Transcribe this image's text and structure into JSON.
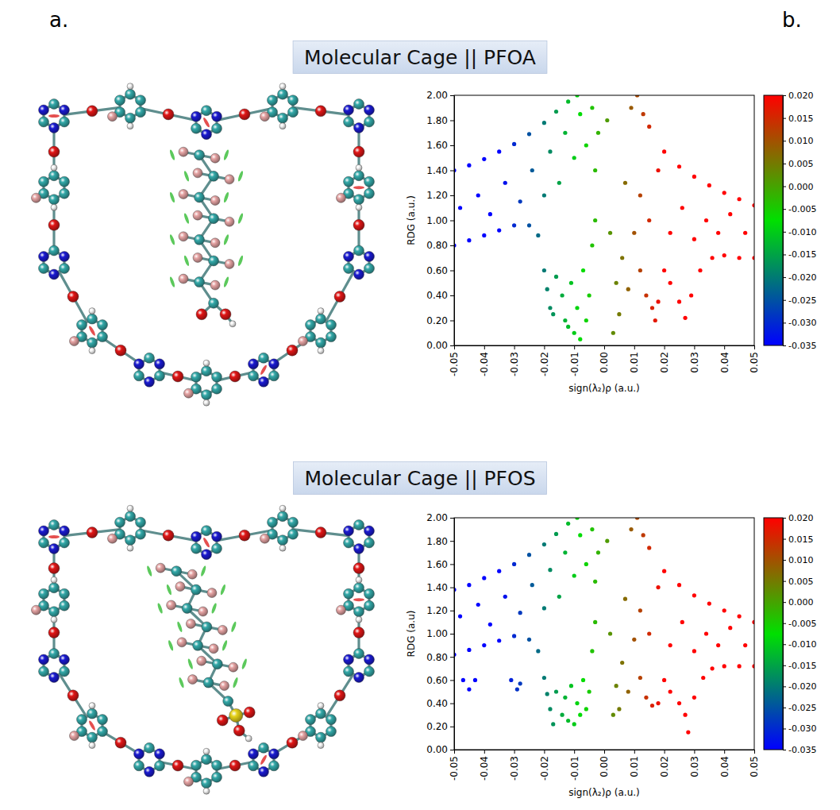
{
  "panel_labels": [
    "a.",
    "b."
  ],
  "chart_data": [
    {
      "type": "scatter",
      "title": "Molecular Cage || PFOA",
      "xlabel": "sign(λ₂)ρ (a.u.)",
      "ylabel": "RDG (a.u.)",
      "x": [
        -0.05,
        -0.045,
        -0.04,
        -0.035,
        -0.03,
        -0.025,
        -0.02,
        -0.016,
        -0.012,
        -0.009,
        -0.05,
        -0.045,
        -0.04,
        -0.035,
        -0.03,
        -0.025,
        -0.022,
        -0.048,
        -0.042,
        -0.038,
        -0.033,
        -0.028,
        -0.024,
        -0.02,
        -0.018,
        -0.015,
        -0.013,
        -0.01,
        -0.008,
        -0.006,
        -0.004,
        -0.003,
        -0.02,
        -0.019,
        -0.018,
        -0.017,
        -0.016,
        -0.014,
        -0.013,
        -0.012,
        -0.011,
        -0.01,
        -0.009,
        -0.008,
        -0.007,
        -0.006,
        -0.005,
        -0.004,
        -0.003,
        -0.002,
        0.001,
        0.002,
        0.003,
        0.004,
        0.005,
        0.006,
        0.007,
        0.008,
        0.009,
        0.01,
        0.012,
        0.014,
        0.016,
        0.017,
        0.018,
        0.02,
        0.022,
        0.025,
        0.027,
        0.029,
        0.032,
        0.036,
        0.04,
        0.045,
        0.05,
        0.011,
        0.013,
        0.015,
        0.02,
        0.025,
        0.03,
        0.035,
        0.04,
        0.045,
        0.05,
        0.012,
        0.015,
        0.018,
        0.022,
        0.026,
        0.03,
        0.034,
        0.038,
        0.042,
        0.047
      ],
      "values": [
        1.4,
        1.44,
        1.49,
        1.55,
        1.61,
        1.69,
        1.78,
        1.87,
        1.95,
        2.0,
        0.8,
        0.84,
        0.88,
        0.92,
        0.96,
        0.96,
        0.88,
        1.1,
        1.2,
        1.05,
        1.3,
        1.15,
        1.4,
        1.2,
        1.55,
        1.3,
        1.7,
        1.5,
        1.85,
        1.6,
        1.9,
        1.4,
        0.6,
        0.45,
        0.3,
        0.25,
        0.55,
        0.4,
        0.2,
        0.15,
        0.5,
        0.1,
        0.3,
        0.05,
        0.6,
        0.2,
        0.4,
        0.8,
        1.0,
        1.7,
        1.8,
        0.9,
        0.1,
        0.5,
        0.25,
        0.7,
        1.3,
        0.45,
        1.9,
        0.9,
        0.6,
        0.4,
        0.3,
        0.2,
        0.35,
        0.6,
        0.5,
        0.35,
        0.22,
        0.4,
        0.6,
        0.7,
        0.72,
        0.7,
        0.7,
        2.0,
        1.85,
        1.75,
        1.55,
        1.43,
        1.35,
        1.28,
        1.22,
        1.17,
        1.12,
        1.2,
        1.0,
        1.4,
        0.9,
        1.1,
        0.85,
        1.0,
        0.9,
        1.05,
        0.9
      ],
      "xlim": [
        -0.05,
        0.05
      ],
      "ylim": [
        0,
        2
      ],
      "xticks": [
        -0.05,
        -0.04,
        -0.03,
        -0.02,
        -0.01,
        {
          "value": 0,
          "label": "0.00"
        },
        0.01,
        0.02,
        0.03,
        0.04,
        0.05
      ],
      "yticks": [
        {
          "value": 0,
          "label": "0.00"
        },
        {
          "value": 0.2,
          "label": "0.20"
        },
        {
          "value": 0.4,
          "label": "0.40"
        },
        {
          "value": 0.6,
          "label": "0.60"
        },
        {
          "value": 0.8,
          "label": "0.80"
        },
        {
          "value": 1,
          "label": "1.00"
        },
        {
          "value": 1.2,
          "label": "1.20"
        },
        {
          "value": 1.4,
          "label": "1.40"
        },
        {
          "value": 1.6,
          "label": "1.60"
        },
        {
          "value": 1.8,
          "label": "1.80"
        },
        {
          "value": 2,
          "label": "2.00"
        }
      ],
      "colorbar": {
        "range": [
          -0.035,
          0.02
        ],
        "ticks": [
          {
            "value": 0.02,
            "label": "0.020"
          },
          0.015,
          {
            "value": 0.01,
            "label": "0.010"
          },
          0.005,
          {
            "value": 0,
            "label": "0.000"
          },
          -0.005,
          {
            "value": -0.01,
            "label": "-0.010"
          },
          -0.015,
          {
            "value": -0.02,
            "label": "-0.020"
          },
          -0.025,
          {
            "value": -0.03,
            "label": "-0.030"
          },
          -0.035
        ]
      }
    },
    {
      "type": "scatter",
      "title": "Molecular Cage || PFOS",
      "xlabel": "sign(λ₂)ρ (a.u.)",
      "ylabel": "RDG (a.u)",
      "x": [
        -0.05,
        -0.045,
        -0.04,
        -0.035,
        -0.03,
        -0.025,
        -0.02,
        -0.016,
        -0.012,
        -0.009,
        -0.05,
        -0.045,
        -0.04,
        -0.035,
        -0.03,
        -0.025,
        -0.022,
        -0.047,
        -0.045,
        -0.043,
        -0.031,
        -0.029,
        -0.028,
        -0.048,
        -0.042,
        -0.038,
        -0.033,
        -0.028,
        -0.024,
        -0.02,
        -0.018,
        -0.015,
        -0.013,
        -0.01,
        -0.008,
        -0.006,
        -0.004,
        -0.003,
        -0.02,
        -0.019,
        -0.018,
        -0.017,
        -0.016,
        -0.014,
        -0.013,
        -0.012,
        -0.011,
        -0.01,
        -0.009,
        -0.008,
        -0.007,
        -0.006,
        -0.005,
        -0.004,
        -0.003,
        -0.002,
        0.001,
        0.002,
        0.003,
        0.004,
        0.005,
        0.006,
        0.007,
        0.008,
        0.009,
        0.01,
        0.012,
        0.014,
        0.016,
        0.018,
        0.02,
        0.022,
        0.025,
        0.027,
        0.028,
        0.03,
        0.033,
        0.036,
        0.04,
        0.045,
        0.05,
        0.011,
        0.013,
        0.015,
        0.02,
        0.025,
        0.03,
        0.035,
        0.04,
        0.045,
        0.05,
        0.012,
        0.015,
        0.018,
        0.022,
        0.026,
        0.03,
        0.034,
        0.038,
        0.042,
        0.047
      ],
      "values": [
        1.38,
        1.42,
        1.48,
        1.54,
        1.6,
        1.68,
        1.77,
        1.86,
        1.95,
        2.0,
        0.82,
        0.86,
        0.9,
        0.94,
        0.98,
        0.95,
        0.85,
        0.6,
        0.52,
        0.6,
        0.6,
        0.52,
        0.57,
        1.15,
        1.25,
        1.08,
        1.32,
        1.18,
        1.42,
        1.22,
        1.55,
        1.32,
        1.7,
        1.5,
        1.85,
        1.6,
        1.9,
        1.45,
        0.62,
        0.48,
        0.35,
        0.22,
        0.5,
        0.3,
        0.45,
        0.25,
        0.55,
        0.22,
        0.4,
        0.3,
        0.6,
        0.35,
        0.5,
        0.85,
        1.1,
        1.7,
        1.8,
        1.0,
        0.3,
        0.55,
        0.35,
        0.75,
        1.3,
        0.5,
        1.9,
        0.95,
        0.62,
        0.45,
        0.38,
        0.4,
        0.6,
        0.5,
        0.4,
        0.3,
        0.15,
        0.45,
        0.62,
        0.7,
        0.72,
        0.72,
        0.72,
        2.0,
        1.85,
        1.74,
        1.54,
        1.42,
        1.33,
        1.26,
        1.2,
        1.15,
        1.1,
        1.2,
        1.0,
        1.4,
        0.9,
        1.1,
        0.85,
        1.0,
        0.9,
        1.05,
        0.9
      ],
      "xlim": [
        -0.05,
        0.05
      ],
      "ylim": [
        0,
        2
      ],
      "xticks": [
        -0.05,
        -0.04,
        -0.03,
        -0.02,
        -0.01,
        {
          "value": 0,
          "label": "0.00"
        },
        0.01,
        0.02,
        0.03,
        0.04,
        0.05
      ],
      "yticks": [
        {
          "value": 0,
          "label": "0.00"
        },
        {
          "value": 0.2,
          "label": "0.20"
        },
        {
          "value": 0.4,
          "label": "0.40"
        },
        {
          "value": 0.6,
          "label": "0.60"
        },
        {
          "value": 0.8,
          "label": "0.80"
        },
        {
          "value": 1,
          "label": "1.00"
        },
        {
          "value": 1.2,
          "label": "1.20"
        },
        {
          "value": 1.4,
          "label": "1.40"
        },
        {
          "value": 1.6,
          "label": "1.60"
        },
        {
          "value": 1.8,
          "label": "1.80"
        },
        {
          "value": 2,
          "label": "2.00"
        }
      ],
      "colorbar": {
        "range": [
          -0.035,
          0.02
        ],
        "ticks": [
          {
            "value": 0.02,
            "label": "0.020"
          },
          0.015,
          {
            "value": 0.01,
            "label": "0.010"
          },
          0.005,
          {
            "value": 0,
            "label": "0.000"
          },
          -0.005,
          {
            "value": -0.01,
            "label": "-0.010"
          },
          -0.015,
          {
            "value": -0.02,
            "label": "-0.020"
          },
          -0.025,
          {
            "value": -0.03,
            "label": "-0.030"
          },
          -0.035
        ]
      }
    }
  ]
}
